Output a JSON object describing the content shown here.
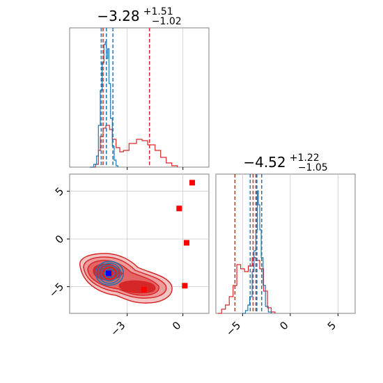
{
  "chart_data": {
    "type": "corner",
    "grid": true,
    "colors": {
      "blue": "#1f77b4",
      "red": "#d62728",
      "marker_red": "#ff0000",
      "marker_blue": "#0000ff"
    },
    "titles": {
      "param1": {
        "median": "−3.28",
        "plus": "+1.51",
        "minus": "−1.02"
      },
      "param2": {
        "median": "−4.52",
        "plus": "+1.22",
        "minus": "−1.05"
      }
    },
    "axes": {
      "param1_range": [
        -6.1,
        1.4
      ],
      "param2_range": [
        -7.8,
        6.8
      ],
      "param1_ticks": [
        {
          "value": -3,
          "label": "−3"
        },
        {
          "value": 0,
          "label": "0"
        }
      ],
      "param2_ticks": [
        {
          "value": -5,
          "label": "−5"
        },
        {
          "value": 0,
          "label": "0"
        },
        {
          "value": 5,
          "label": "5"
        }
      ]
    },
    "hist_param1": {
      "blue_quantiles": [
        -4.4,
        -4.12,
        -3.77
      ],
      "red_quantiles": [
        -4.3,
        -1.8
      ],
      "blue_curve": [
        [
          -5.0,
          0
        ],
        [
          -4.8,
          0.02
        ],
        [
          -4.65,
          0.08
        ],
        [
          -4.55,
          0.3
        ],
        [
          -4.45,
          0.55
        ],
        [
          -4.35,
          0.75
        ],
        [
          -4.25,
          0.88
        ],
        [
          -4.18,
          0.9
        ],
        [
          -4.12,
          0.78
        ],
        [
          -4.05,
          0.85
        ],
        [
          -3.98,
          0.6
        ],
        [
          -3.9,
          0.35
        ],
        [
          -3.8,
          0.15
        ],
        [
          -3.7,
          0.05
        ],
        [
          -3.6,
          0.01
        ],
        [
          -3.5,
          0
        ]
      ],
      "red_curve": [
        [
          -5.0,
          0
        ],
        [
          -4.7,
          0.02
        ],
        [
          -4.55,
          0.12
        ],
        [
          -4.45,
          0.22
        ],
        [
          -4.3,
          0.28
        ],
        [
          -4.15,
          0.3
        ],
        [
          -3.95,
          0.27
        ],
        [
          -3.8,
          0.2
        ],
        [
          -3.6,
          0.14
        ],
        [
          -3.4,
          0.11
        ],
        [
          -3.2,
          0.12
        ],
        [
          -2.9,
          0.17
        ],
        [
          -2.5,
          0.2
        ],
        [
          -2.2,
          0.19
        ],
        [
          -1.9,
          0.16
        ],
        [
          -1.5,
          0.12
        ],
        [
          -1.2,
          0.07
        ],
        [
          -0.9,
          0.03
        ],
        [
          -0.6,
          0.01
        ],
        [
          -0.3,
          0
        ]
      ]
    },
    "hist_param2": {
      "blue_quantiles": [
        -4.2,
        -3.5,
        -3.0
      ],
      "red_quantiles": [
        -5.8,
        -3.9,
        -3.6
      ],
      "blue_curve": [
        [
          -5.0,
          0
        ],
        [
          -4.7,
          0.02
        ],
        [
          -4.45,
          0.06
        ],
        [
          -4.25,
          0.12
        ],
        [
          -4.0,
          0.3
        ],
        [
          -3.8,
          0.45
        ],
        [
          -3.6,
          0.6
        ],
        [
          -3.45,
          0.88
        ],
        [
          -3.35,
          0.78
        ],
        [
          -3.2,
          0.6
        ],
        [
          -3.05,
          0.4
        ],
        [
          -2.85,
          0.2
        ],
        [
          -2.6,
          0.05
        ],
        [
          -2.3,
          0.01
        ],
        [
          -2.0,
          0
        ]
      ],
      "red_curve": [
        [
          -7.6,
          0
        ],
        [
          -7.2,
          0.03
        ],
        [
          -6.8,
          0.06
        ],
        [
          -6.4,
          0.12
        ],
        [
          -6.0,
          0.2
        ],
        [
          -5.6,
          0.35
        ],
        [
          -5.2,
          0.32
        ],
        [
          -4.8,
          0.3
        ],
        [
          -4.4,
          0.34
        ],
        [
          -4.0,
          0.4
        ],
        [
          -3.6,
          0.38
        ],
        [
          -3.2,
          0.32
        ],
        [
          -2.8,
          0.16
        ],
        [
          -2.4,
          0.04
        ],
        [
          -2.0,
          0.01
        ],
        [
          -1.6,
          0
        ]
      ]
    },
    "scatter_2d": {
      "blue_contours": [
        {
          "cx": -3.95,
          "cy": -3.6,
          "rx": 0.25,
          "ry": 0.45
        },
        {
          "cx": -3.95,
          "cy": -3.6,
          "rx": 0.45,
          "ry": 0.8
        },
        {
          "cx": -3.95,
          "cy": -3.6,
          "rx": 0.6,
          "ry": 1.05
        },
        {
          "cx": -3.95,
          "cy": -3.6,
          "rx": 0.75,
          "ry": 1.25
        }
      ],
      "red_markers": [
        {
          "x": 0.5,
          "y": 5.9
        },
        {
          "x": -0.2,
          "y": 3.2
        },
        {
          "x": 0.2,
          "y": -0.4
        },
        {
          "x": 0.1,
          "y": -4.9
        },
        {
          "x": -2.1,
          "y": -5.3
        }
      ],
      "blue_marker": {
        "x": -4.0,
        "y": -3.6
      }
    }
  }
}
